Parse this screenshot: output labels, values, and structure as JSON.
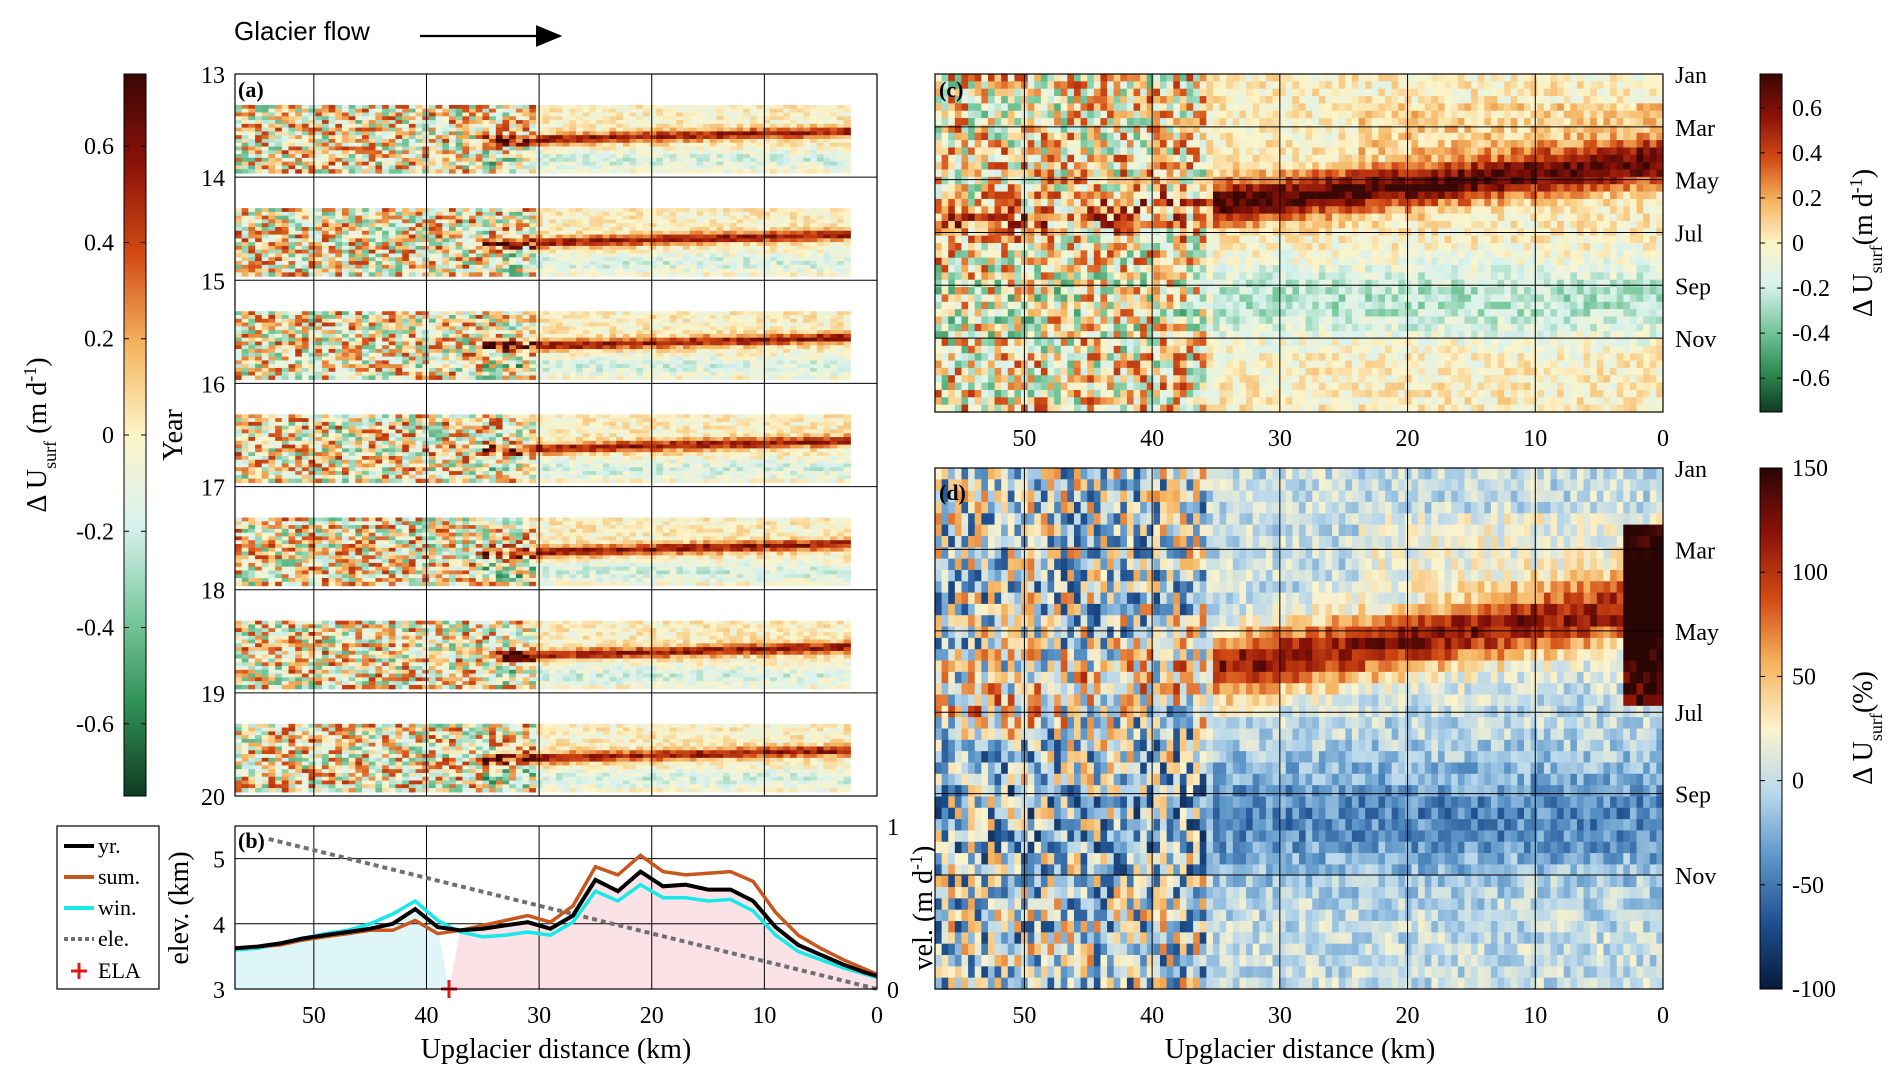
{
  "header": {
    "flow_label": "Glacier flow"
  },
  "colors": {
    "summer": "#c8571d",
    "winter": "#18e8e8",
    "year": "#000000",
    "elevation": "#707070",
    "ela": "#e01818",
    "accumulation_shade": "#dff6f8",
    "ablation_shade": "#fbe2e6"
  },
  "chart_data": [
    {
      "id": "a",
      "type": "heatmap",
      "panel_label": "(a)",
      "xlim": [
        57,
        0
      ],
      "ylim": [
        20,
        13
      ],
      "x_ticks": [
        "50",
        "40",
        "30",
        "20",
        "10"
      ],
      "y_ticks": [
        "13",
        "14",
        "15",
        "16",
        "17",
        "18",
        "19",
        "20"
      ],
      "ylabel": "Year",
      "xlabel": "",
      "colorbar": {
        "label_prefix": "Δ U",
        "label_sub": "surf",
        "label_units": " (m d",
        "label_sup": "-1",
        "label_close": ")",
        "range": [
          -0.75,
          0.75
        ],
        "ticks": [
          "0.6",
          "0.4",
          "0.2",
          "0",
          "-0.2",
          "-0.4",
          "-0.6"
        ],
        "colormap": [
          "#0f3b22",
          "#2f8f55",
          "#7ccaa0",
          "#d9f2ef",
          "#fdf4c8",
          "#f5b460",
          "#d24a14",
          "#8a1208",
          "#3a0705"
        ]
      }
    },
    {
      "id": "b",
      "type": "line",
      "panel_label": "(b)",
      "xlim": [
        57,
        0
      ],
      "ylim_left": [
        3,
        5.5
      ],
      "ylim_right": [
        0,
        1
      ],
      "x_ticks": [
        "50",
        "40",
        "30",
        "20",
        "10",
        "0"
      ],
      "y_ticks_left": [
        "3",
        "4",
        "5"
      ],
      "y_ticks_right": [
        "0",
        "1"
      ],
      "xlabel": "Upglacier distance (km)",
      "ylabel_left": "elev. (km)",
      "ylabel_right_main": "vel. (m d",
      "ylabel_right_sup": "-1",
      "ylabel_right_close": ")",
      "ela_km": 38,
      "legend": [
        "yr.",
        "sum.",
        "win.",
        "ele.",
        "ELA"
      ],
      "series": [
        {
          "name": "yr.",
          "x": [
            57,
            55,
            53,
            51,
            49,
            47,
            45,
            43,
            41,
            39,
            37,
            35,
            33,
            31,
            29,
            27,
            25,
            23,
            21,
            19,
            17,
            15,
            13,
            11,
            9,
            7,
            5,
            3,
            1,
            0
          ],
          "y": [
            0.25,
            0.26,
            0.28,
            0.31,
            0.33,
            0.35,
            0.37,
            0.4,
            0.49,
            0.38,
            0.36,
            0.37,
            0.39,
            0.41,
            0.37,
            0.45,
            0.67,
            0.6,
            0.72,
            0.63,
            0.64,
            0.61,
            0.61,
            0.54,
            0.38,
            0.27,
            0.21,
            0.15,
            0.1,
            0.08
          ]
        },
        {
          "name": "sum.",
          "x": [
            57,
            55,
            53,
            51,
            49,
            47,
            45,
            43,
            41,
            39,
            37,
            35,
            33,
            31,
            29,
            27,
            25,
            23,
            21,
            19,
            17,
            15,
            13,
            11,
            9,
            7,
            5,
            3,
            1,
            0
          ],
          "y": [
            0.25,
            0.26,
            0.27,
            0.3,
            0.32,
            0.34,
            0.36,
            0.36,
            0.42,
            0.34,
            0.36,
            0.39,
            0.42,
            0.45,
            0.41,
            0.51,
            0.75,
            0.7,
            0.82,
            0.72,
            0.7,
            0.71,
            0.72,
            0.66,
            0.47,
            0.33,
            0.25,
            0.18,
            0.12,
            0.09
          ]
        },
        {
          "name": "win.",
          "x": [
            57,
            55,
            53,
            51,
            49,
            47,
            45,
            43,
            41,
            39,
            37,
            35,
            33,
            31,
            29,
            27,
            25,
            23,
            21,
            19,
            17,
            15,
            13,
            11,
            9,
            7,
            5,
            3,
            1,
            0
          ],
          "y": [
            0.24,
            0.25,
            0.28,
            0.31,
            0.34,
            0.36,
            0.4,
            0.46,
            0.54,
            0.42,
            0.35,
            0.32,
            0.33,
            0.35,
            0.33,
            0.41,
            0.6,
            0.54,
            0.64,
            0.56,
            0.56,
            0.54,
            0.55,
            0.48,
            0.33,
            0.23,
            0.18,
            0.13,
            0.09,
            0.07
          ]
        },
        {
          "name": "ele.",
          "x": [
            54,
            0
          ],
          "y": [
            5.3,
            3.0
          ]
        }
      ]
    },
    {
      "id": "c",
      "type": "heatmap",
      "panel_label": "(c)",
      "xlim": [
        57,
        0
      ],
      "x_ticks": [
        "50",
        "40",
        "30",
        "20",
        "10",
        "0"
      ],
      "y_ticks_right": [
        "Jan",
        "Mar",
        "May",
        "Jul",
        "Sep",
        "Nov"
      ],
      "colorbar": {
        "label_prefix": "Δ U",
        "label_sub": "surf",
        "label_units": "(m d",
        "label_sup": "-1",
        "label_close": ")",
        "range": [
          -0.75,
          0.75
        ],
        "ticks": [
          "0.6",
          "0.4",
          "0.2",
          "0",
          "-0.2",
          "-0.4",
          "-0.6"
        ],
        "colormap": [
          "#0f3b22",
          "#2f8f55",
          "#7ccaa0",
          "#d9f2ef",
          "#fdf4c8",
          "#f5b460",
          "#d24a14",
          "#8a1208",
          "#3a0705"
        ]
      }
    },
    {
      "id": "d",
      "type": "heatmap",
      "panel_label": "(d)",
      "xlim": [
        57,
        0
      ],
      "x_ticks": [
        "50",
        "40",
        "30",
        "20",
        "10",
        "0"
      ],
      "y_ticks_right": [
        "Jan",
        "Mar",
        "May",
        "Jul",
        "Sep",
        "Nov"
      ],
      "xlabel": "Upglacier distance (km)",
      "colorbar": {
        "label_prefix": "Δ U",
        "label_sub": "surf",
        "label_units": "(%)",
        "label_sup": "",
        "label_close": "",
        "range": [
          -100,
          150
        ],
        "ticks": [
          "150",
          "100",
          "50",
          "0",
          "-50",
          "-100"
        ],
        "colormap": [
          "#071a3a",
          "#1e4f8f",
          "#5b95c8",
          "#b9d8ec",
          "#fbf3cc",
          "#f5b460",
          "#d24a14",
          "#8a1208",
          "#2a0504"
        ]
      }
    }
  ]
}
